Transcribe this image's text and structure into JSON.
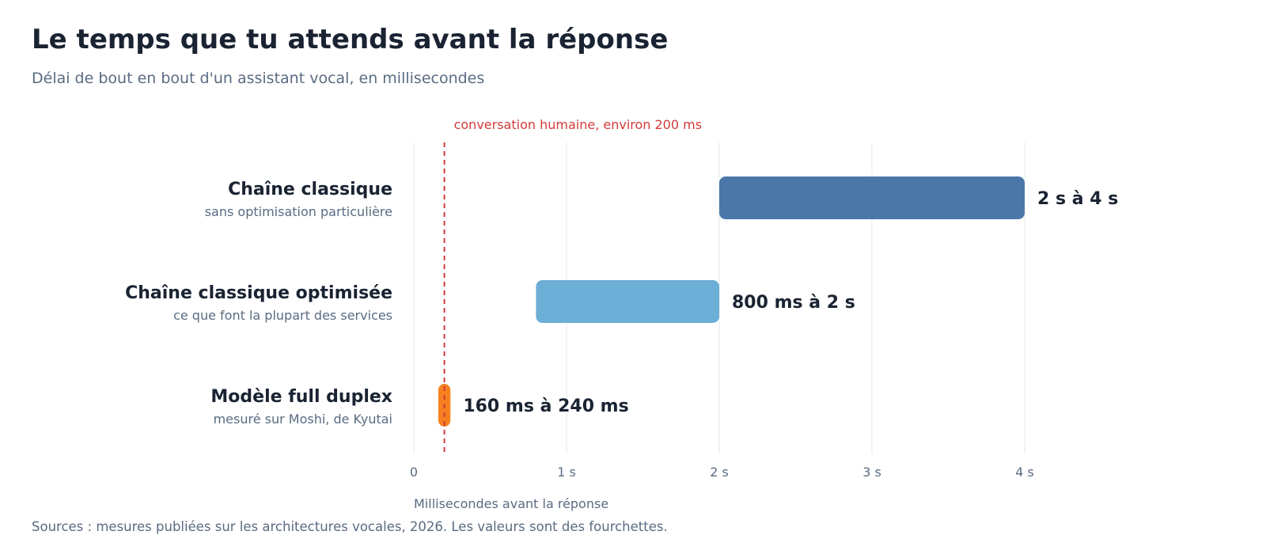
{
  "header": {
    "title": "Le temps que tu attends avant la réponse",
    "subtitle": "Délai de bout en bout d'un assistant vocal, en millisecondes"
  },
  "footer": {
    "source": "Sources : mesures publiées sur les architectures vocales, 2026. Les valeurs sont des fourchettes."
  },
  "chart_data": {
    "type": "bar",
    "orientation": "horizontal",
    "title": "Le temps que tu attends avant la réponse",
    "subtitle": "Délai de bout en bout d'un assistant vocal, en millisecondes",
    "xlabel": "Millisecondes avant la réponse",
    "xlim": [
      0,
      4000
    ],
    "grid": true,
    "ticks": [
      {
        "value": 0,
        "label": "0"
      },
      {
        "value": 1000,
        "label": "1 s"
      },
      {
        "value": 2000,
        "label": "2 s"
      },
      {
        "value": 3000,
        "label": "3 s"
      },
      {
        "value": 4000,
        "label": "4 s"
      }
    ],
    "reference_line": {
      "value": 200,
      "label": "conversation humaine, environ 200 ms",
      "color": "#d23a3a"
    },
    "bars": [
      {
        "name": "Chaîne classique",
        "note": "sans optimisation particulière",
        "start": 2000,
        "end": 4000,
        "label": "2 s à 4 s",
        "color": "#4a77a8"
      },
      {
        "name": "Chaîne classique optimisée",
        "note": "ce que font la plupart des services",
        "start": 800,
        "end": 2000,
        "label": "800 ms à 2 s",
        "color": "#6baed6"
      },
      {
        "name": "Modèle full duplex",
        "note": "mesuré sur Moshi, de Kyutai",
        "start": 160,
        "end": 240,
        "label": "160 ms à 240 ms",
        "color": "#f5821f"
      }
    ]
  }
}
